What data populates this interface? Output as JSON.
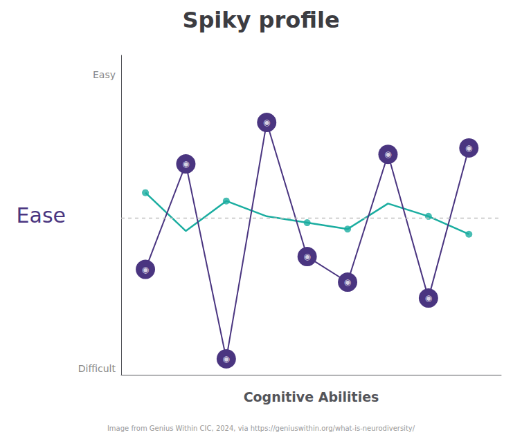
{
  "chart_data": {
    "type": "line",
    "title": "Spiky profile",
    "x_label": "Cognitive Abilities",
    "y_label": "Ease",
    "x": [
      1,
      2,
      3,
      4,
      5,
      6,
      7,
      8,
      9
    ],
    "xlim": [
      0.4,
      9.8
    ],
    "ylim": [
      0,
      5
    ],
    "xticks": [],
    "yticks": [
      {
        "value": 4.7,
        "label": "Easy"
      },
      {
        "value": 0.1,
        "label": "Difficult"
      }
    ],
    "tick_labels": "y",
    "grid": false,
    "series": [
      {
        "type": "line",
        "color": "#1aada0",
        "marker": "none",
        "values": [
          2.85,
          2.25,
          2.72,
          2.48,
          2.38,
          2.28,
          2.68,
          2.48,
          2.2
        ]
      },
      {
        "type": "line",
        "color": "#4a3580",
        "marker": "circle",
        "values": [
          1.65,
          3.3,
          0.25,
          3.95,
          1.85,
          1.45,
          3.45,
          1.2,
          3.55
        ]
      },
      {
        "type": "scatter",
        "color": "#1aada0",
        "marker": "circle",
        "values": [
          2.85,
          null,
          2.72,
          null,
          2.38,
          2.28,
          null,
          2.48,
          2.2
        ]
      }
    ],
    "reference_lines": [
      {
        "y": 2.45,
        "color": "#c0c0c0",
        "line_style": "dashed"
      }
    ],
    "annotations": [
      {
        "text": "◉",
        "x": 1,
        "y": 1.65
      },
      {
        "text": "◉",
        "x": 2,
        "y": 3.3
      },
      {
        "text": "◉",
        "x": 3,
        "y": 0.25
      },
      {
        "text": "◉",
        "x": 4,
        "y": 3.95
      },
      {
        "text": "◉",
        "x": 5,
        "y": 1.85
      },
      {
        "text": "◉",
        "x": 6,
        "y": 1.45
      },
      {
        "text": "◉",
        "x": 7,
        "y": 3.45
      },
      {
        "text": "◉",
        "x": 8,
        "y": 1.2
      },
      {
        "text": "◉",
        "x": 9,
        "y": 3.55
      }
    ],
    "footnote": "Image from Genius Within CIC, 2024, via https://geniuswithin.org/what-is-neurodiversity/"
  }
}
